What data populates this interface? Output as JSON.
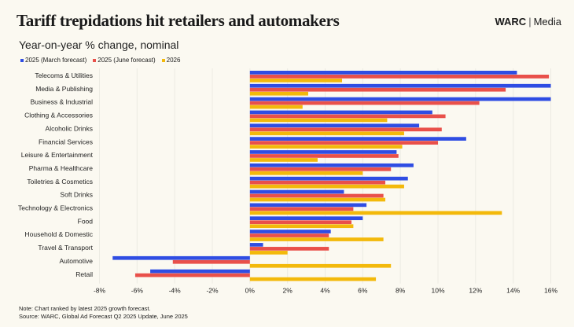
{
  "title": "Tariff trepidations hit retailers and automakers",
  "brand": {
    "name": "WARC",
    "suffix": "Media"
  },
  "notes": [
    "Note: Chart ranked by latest 2025 growth forecast.",
    "Source: WARC, Global Ad Forecast Q2 2025 Update, June 2025"
  ],
  "chart_data": {
    "type": "bar",
    "orientation": "horizontal",
    "title": "Tariff trepidations hit retailers and automakers",
    "subtitle": "Year-on-year % change, nominal",
    "xlabel": "",
    "ylabel": "",
    "xlim": [
      -8,
      16
    ],
    "xticks": [
      -8,
      -6,
      -4,
      -2,
      0,
      2,
      4,
      6,
      8,
      10,
      12,
      14,
      16
    ],
    "xtick_labels": [
      "-8%",
      "-6%",
      "-4%",
      "-2%",
      "0%",
      "2%",
      "4%",
      "6%",
      "8%",
      "10%",
      "12%",
      "14%",
      "16%"
    ],
    "grid": true,
    "legend_position": "top-left",
    "categories": [
      "Telecoms & Utilities",
      "Media & Publishing",
      "Business & Industrial",
      "Clothing & Accessories",
      "Alcoholic Drinks",
      "Financial Services",
      "Leisure & Entertainment",
      "Pharma & Healthcare",
      "Toiletries & Cosmetics",
      "Soft Drinks",
      "Technology & Electronics",
      "Food",
      "Household & Domestic",
      "Travel & Transport",
      "Automotive",
      "Retail"
    ],
    "series": [
      {
        "name": "2025 (March forecast)",
        "color": "#2f4de3",
        "values": [
          14.2,
          16.0,
          16.0,
          9.7,
          9.0,
          11.5,
          7.8,
          8.7,
          8.4,
          5.0,
          6.2,
          6.0,
          4.3,
          0.7,
          -7.3,
          -5.3
        ]
      },
      {
        "name": "2025 (June forecast)",
        "color": "#e9504a",
        "values": [
          15.9,
          13.6,
          12.2,
          10.4,
          10.2,
          10.0,
          7.9,
          7.5,
          7.2,
          7.1,
          5.5,
          5.4,
          4.2,
          4.2,
          -4.1,
          -6.1
        ]
      },
      {
        "name": "2026",
        "color": "#f3b90b",
        "values": [
          4.9,
          3.1,
          2.8,
          7.3,
          8.2,
          8.1,
          3.6,
          6.0,
          8.2,
          7.2,
          13.4,
          5.5,
          7.1,
          2.0,
          7.5,
          6.7
        ]
      }
    ]
  }
}
